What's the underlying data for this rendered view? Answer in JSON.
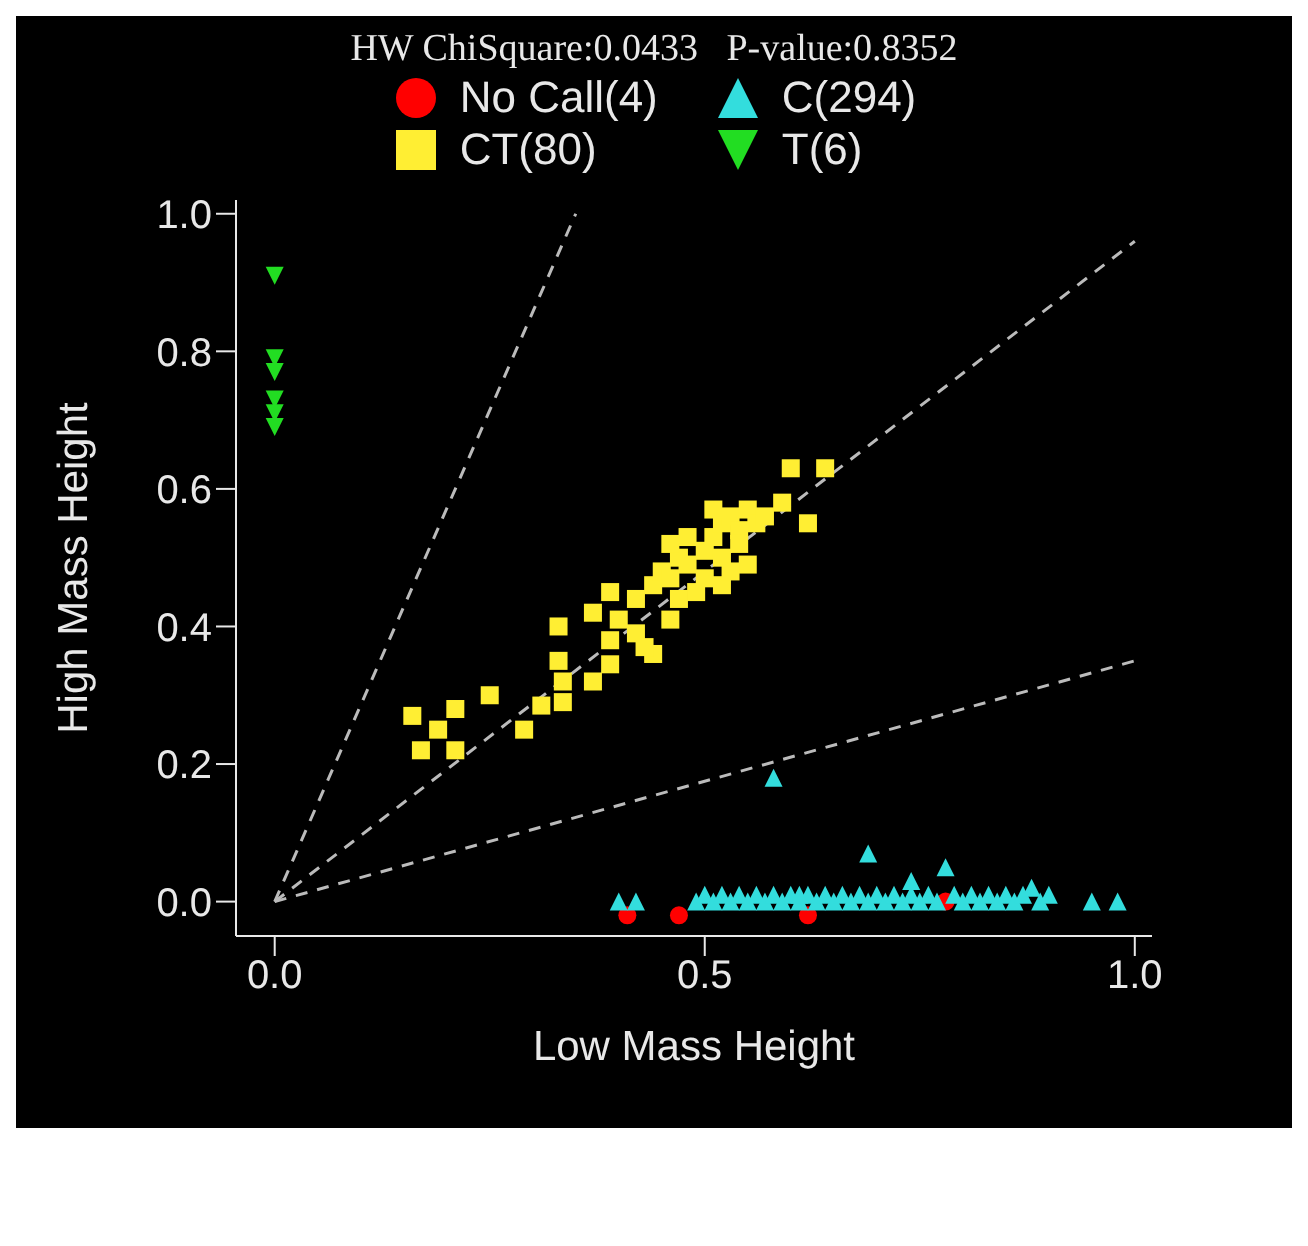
{
  "chart_data": {
    "type": "scatter",
    "title": "HW ChiSquare:0.0433   P-value:0.8352",
    "xlabel": "Low Mass Height",
    "ylabel": "High Mass Height",
    "xlim": [
      -0.045,
      1.02
    ],
    "ylim": [
      -0.05,
      1.02
    ],
    "xticks": [
      {
        "value": 0,
        "label": "0.0"
      },
      {
        "value": 0.5,
        "label": "0.5"
      },
      {
        "value": 1,
        "label": "1.0"
      }
    ],
    "yticks": [
      {
        "value": 0,
        "label": "0.0"
      },
      {
        "value": 0.2,
        "label": "0.2"
      },
      {
        "value": 0.4,
        "label": "0.4"
      },
      {
        "value": 0.6,
        "label": "0.6"
      },
      {
        "value": 0.8,
        "label": "0.8"
      },
      {
        "value": 1,
        "label": "1.0"
      }
    ],
    "legend": "top",
    "series": [
      {
        "type": "line",
        "color": "#bbbbbb",
        "line_style": "dashed",
        "marker": "none",
        "x": [
          0,
          0.35
        ],
        "values": [
          0,
          1.0
        ]
      },
      {
        "type": "line",
        "color": "#bbbbbb",
        "line_style": "dashed",
        "marker": "none",
        "x": [
          0,
          1.0
        ],
        "values": [
          0,
          0.96
        ]
      },
      {
        "type": "line",
        "color": "#bbbbbb",
        "line_style": "dashed",
        "marker": "none",
        "x": [
          0,
          1.0
        ],
        "values": [
          0,
          0.35
        ]
      },
      {
        "name": "No Call(4)",
        "color": "#ff0000",
        "marker": "circle",
        "x": [
          0.78,
          0.47,
          0.41,
          0.62
        ],
        "values": [
          0.0,
          -0.02,
          -0.02,
          -0.02
        ]
      },
      {
        "name": "C(294)",
        "color": "#33dddd",
        "marker": "triangle",
        "x": [
          0.4,
          0.42,
          0.49,
          0.5,
          0.51,
          0.52,
          0.53,
          0.54,
          0.55,
          0.56,
          0.57,
          0.58,
          0.59,
          0.6,
          0.61,
          0.62,
          0.63,
          0.64,
          0.65,
          0.66,
          0.67,
          0.68,
          0.69,
          0.7,
          0.71,
          0.72,
          0.73,
          0.74,
          0.75,
          0.76,
          0.77,
          0.79,
          0.8,
          0.81,
          0.82,
          0.83,
          0.84,
          0.85,
          0.86,
          0.87,
          0.89,
          0.9,
          0.95,
          0.98,
          0.58,
          0.69,
          0.78,
          0.74,
          0.88,
          0.61
        ],
        "values": [
          0.0,
          0.0,
          0.0,
          0.01,
          0.0,
          0.01,
          0.0,
          0.01,
          0.0,
          0.01,
          0.0,
          0.01,
          0.0,
          0.01,
          0.0,
          0.01,
          0.0,
          0.01,
          0.0,
          0.01,
          0.0,
          0.01,
          0.0,
          0.01,
          0.0,
          0.01,
          0.0,
          0.01,
          0.0,
          0.01,
          0.0,
          0.01,
          0.0,
          0.01,
          0.0,
          0.01,
          0.0,
          0.01,
          0.0,
          0.01,
          0.0,
          0.01,
          0.0,
          0.0,
          0.18,
          0.07,
          0.05,
          0.03,
          0.02,
          0.01
        ]
      },
      {
        "name": "CT(80)",
        "color": "#ffee33",
        "marker": "square",
        "x": [
          0.6,
          0.64,
          0.59,
          0.62,
          0.39,
          0.33,
          0.37,
          0.4,
          0.46,
          0.39,
          0.44,
          0.33,
          0.335,
          0.37,
          0.39,
          0.25,
          0.335,
          0.31,
          0.29,
          0.16,
          0.21,
          0.19,
          0.17,
          0.21,
          0.42,
          0.44,
          0.45,
          0.46,
          0.47,
          0.48,
          0.46,
          0.5,
          0.5,
          0.51,
          0.52,
          0.52,
          0.53,
          0.54,
          0.54,
          0.55,
          0.56,
          0.57,
          0.55,
          0.52,
          0.49,
          0.47,
          0.48,
          0.51,
          0.53,
          0.42,
          0.43
        ],
        "values": [
          0.63,
          0.63,
          0.58,
          0.55,
          0.45,
          0.4,
          0.42,
          0.41,
          0.41,
          0.38,
          0.36,
          0.35,
          0.32,
          0.32,
          0.345,
          0.3,
          0.29,
          0.285,
          0.25,
          0.27,
          0.28,
          0.25,
          0.22,
          0.22,
          0.44,
          0.46,
          0.48,
          0.47,
          0.5,
          0.49,
          0.52,
          0.51,
          0.47,
          0.53,
          0.55,
          0.5,
          0.56,
          0.54,
          0.52,
          0.57,
          0.55,
          0.56,
          0.49,
          0.46,
          0.45,
          0.44,
          0.53,
          0.57,
          0.48,
          0.39,
          0.37
        ]
      },
      {
        "name": "T(6)",
        "color": "#22dd22",
        "marker": "triangle-down",
        "x": [
          0,
          0,
          0,
          0,
          0,
          0
        ],
        "values": [
          0.91,
          0.79,
          0.77,
          0.73,
          0.71,
          0.69
        ]
      }
    ]
  }
}
